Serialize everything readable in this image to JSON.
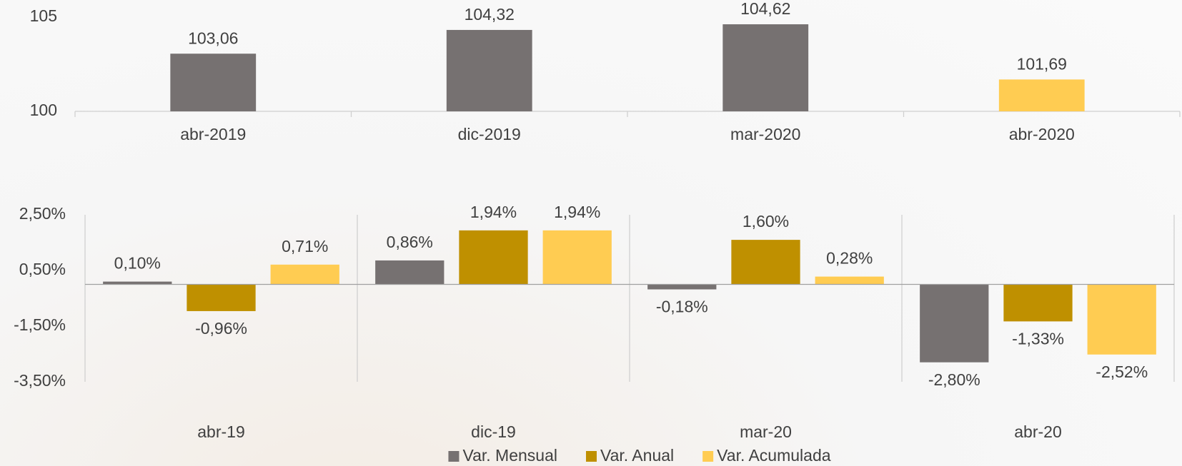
{
  "chart_data": [
    {
      "type": "bar",
      "categories": [
        "abr-2019",
        "dic-2019",
        "mar-2020",
        "abr-2020"
      ],
      "values": [
        103.06,
        104.32,
        104.62,
        101.69
      ],
      "value_labels": [
        "103,06",
        "104,32",
        "104,62",
        "101,69"
      ],
      "colors": [
        "#767171",
        "#767171",
        "#767171",
        "#ffcc52"
      ],
      "ylim": [
        100,
        105
      ],
      "yticks": [
        100,
        105
      ]
    },
    {
      "type": "grouped_bar",
      "categories": [
        "abr-19",
        "dic-19",
        "mar-20",
        "abr-20"
      ],
      "series": [
        {
          "name": "Var. Mensual",
          "color": "#767171",
          "values": [
            0.1,
            0.86,
            -0.18,
            -2.8
          ],
          "value_labels": [
            "0,10%",
            "0,86%",
            "-0,18%",
            "-2,80%"
          ]
        },
        {
          "name": "Var. Anual",
          "color": "#bf9000",
          "values": [
            -0.96,
            1.94,
            1.6,
            -1.33
          ],
          "value_labels": [
            "-0,96%",
            "1,94%",
            "1,60%",
            "-1,33%"
          ]
        },
        {
          "name": "Var. Acumulada",
          "color": "#ffcc52",
          "values": [
            0.71,
            1.94,
            0.28,
            -2.52
          ],
          "value_labels": [
            "0,71%",
            "1,94%",
            "0,28%",
            "-2,52%"
          ]
        }
      ],
      "ylim": [
        -3.5,
        2.5
      ],
      "yticks": [
        {
          "value": -3.5,
          "label": "-3,50%"
        },
        {
          "value": -1.5,
          "label": "-1,50%"
        },
        {
          "value": 0.5,
          "label": "0,50%"
        },
        {
          "value": 2.5,
          "label": "2,50%"
        }
      ],
      "legend": "bottom"
    }
  ]
}
